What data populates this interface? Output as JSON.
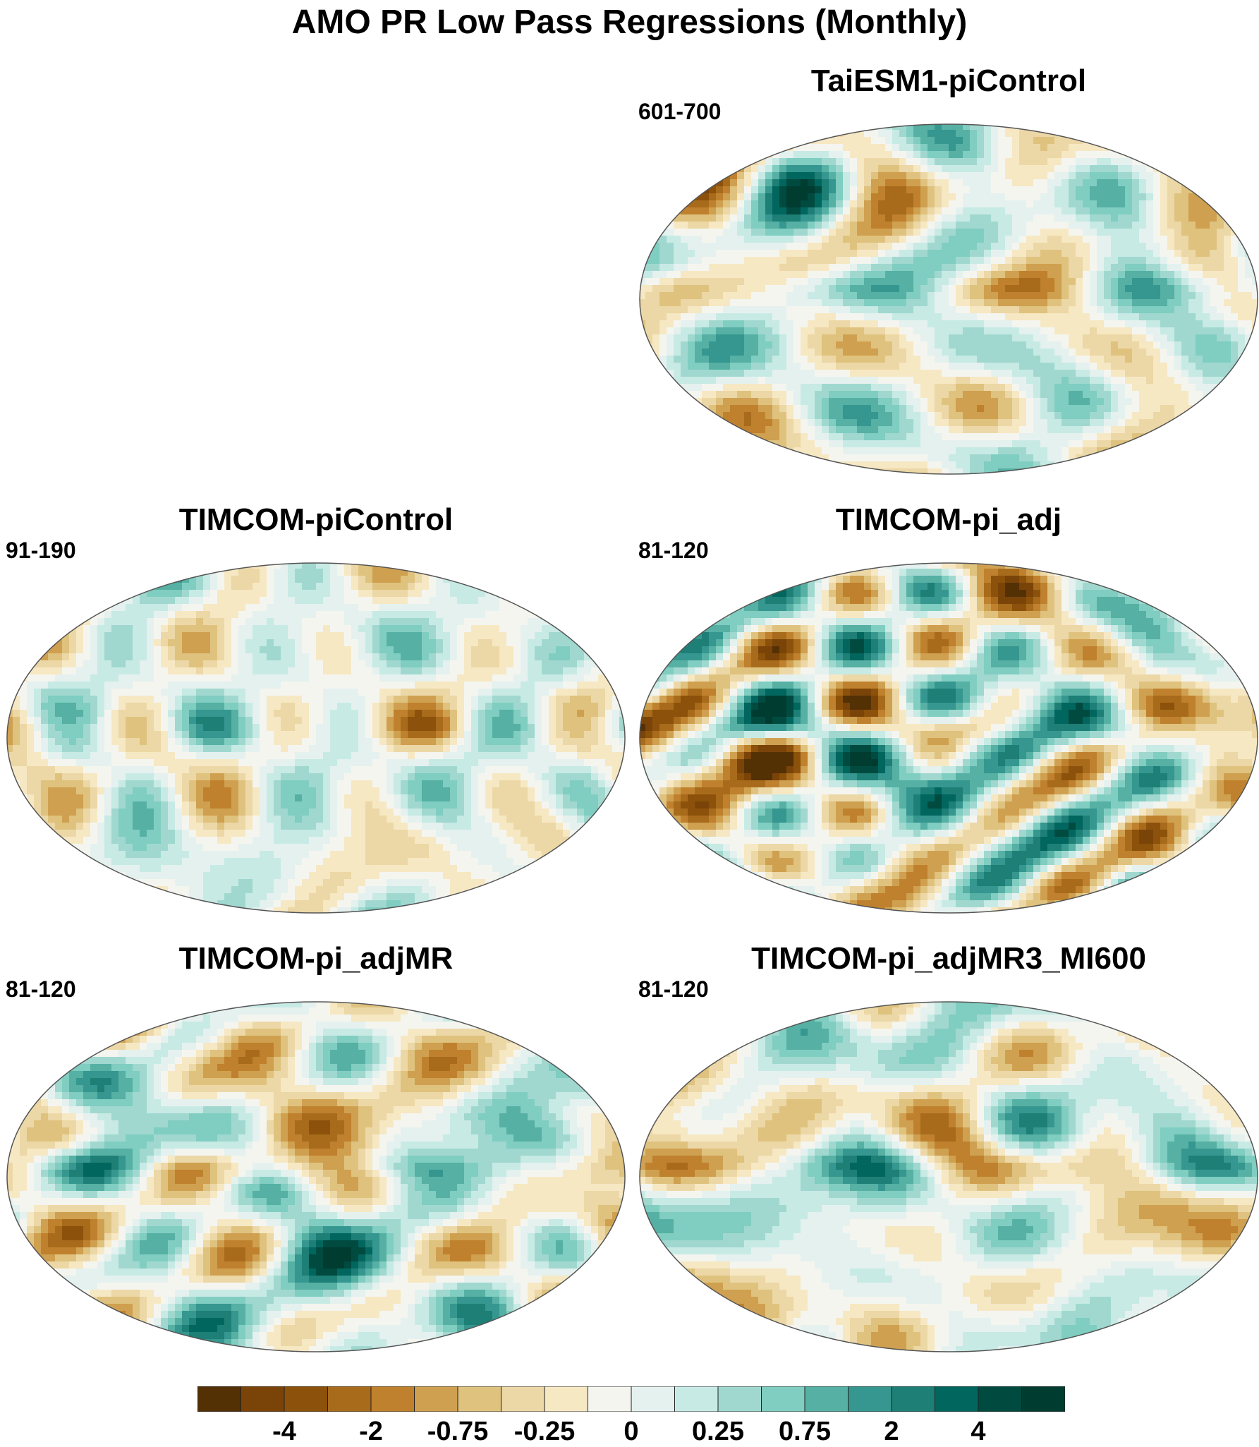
{
  "title": "AMO PR Low Pass Regressions (Monthly)",
  "panels": [
    {
      "model": "TaiESM1-piControl",
      "period": "601-700",
      "intensity": 0.75,
      "seed": 11
    },
    {
      "model": "TIMCOM-piControl",
      "period": "91-190",
      "intensity": 0.55,
      "seed": 23
    },
    {
      "model": "TIMCOM-pi_adj",
      "period": "81-120",
      "intensity": 1.0,
      "seed": 37
    },
    {
      "model": "TIMCOM-pi_adjMR",
      "period": "81-120",
      "intensity": 0.9,
      "seed": 51
    },
    {
      "model": "TIMCOM-pi_adjMR3_MI600",
      "period": "81-120",
      "intensity": 0.8,
      "seed": 67
    }
  ],
  "colorbar": {
    "colors": [
      "#543005",
      "#7a4409",
      "#8c510a",
      "#a86b1c",
      "#bf812d",
      "#cfa050",
      "#dfc27d",
      "#ecd7a6",
      "#f6e8c3",
      "#f5f5f0",
      "#e4f1ef",
      "#c7eae5",
      "#a0d8cf",
      "#80cdc1",
      "#56b0a4",
      "#35978f",
      "#1d7f76",
      "#01665e",
      "#014a40",
      "#003c30"
    ],
    "labels": [
      "-4",
      "-2",
      "-0.75",
      "-0.25",
      "0",
      "0.25",
      "0.75",
      "2",
      "4"
    ]
  }
}
